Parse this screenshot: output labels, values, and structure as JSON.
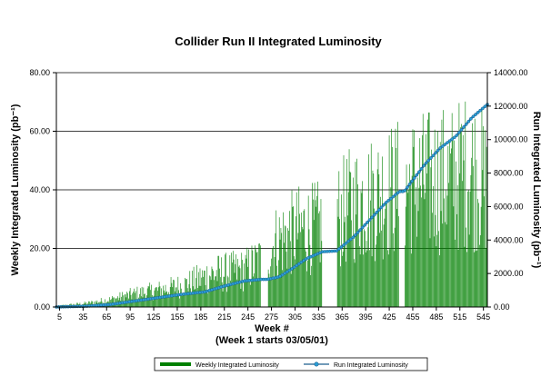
{
  "chart_data": {
    "type": "bar",
    "title": "Collider Run II Integrated Luminosity",
    "xlabel_line1": "Week #",
    "xlabel_line2": "(Week 1 starts 03/05/01)",
    "ylabel_left": "Weekly Integrated Luminosity (pb⁻¹)",
    "ylabel_right": "Run Integrated Luminosity (pb⁻¹)",
    "xlim": [
      1,
      550
    ],
    "ylim_left": [
      0,
      80
    ],
    "ylim_right": [
      0,
      14000
    ],
    "y_ticks_left": [
      "0.00",
      "20.00",
      "40.00",
      "60.00",
      "80.00"
    ],
    "y_ticks_right": [
      "0.00",
      "2000.00",
      "4000.00",
      "6000.00",
      "8000.00",
      "10000.00",
      "12000.00",
      "14000.00"
    ],
    "x_ticks": [
      "5",
      "35",
      "65",
      "95",
      "125",
      "155",
      "185",
      "215",
      "245",
      "275",
      "305",
      "335",
      "365",
      "395",
      "425",
      "455",
      "485",
      "515",
      "545"
    ],
    "grid": "horizontal",
    "legend_position": "bottom",
    "series": [
      {
        "name": "Weekly Integrated Luminosity",
        "type": "bar",
        "axis": "left",
        "color": "#008000",
        "envelope": [
          {
            "week": 1,
            "value": 0.5
          },
          {
            "week": 40,
            "value": 2
          },
          {
            "week": 70,
            "value": 4
          },
          {
            "week": 100,
            "value": 7
          },
          {
            "week": 130,
            "value": 9
          },
          {
            "week": 165,
            "value": 12
          },
          {
            "week": 200,
            "value": 18
          },
          {
            "week": 240,
            "value": 20
          },
          {
            "week": 260,
            "value": 25
          },
          {
            "week": 282,
            "value": 36
          },
          {
            "week": 310,
            "value": 42
          },
          {
            "week": 345,
            "value": 44
          },
          {
            "week": 375,
            "value": 55
          },
          {
            "week": 405,
            "value": 60
          },
          {
            "week": 435,
            "value": 65
          },
          {
            "week": 470,
            "value": 68
          },
          {
            "week": 505,
            "value": 70
          },
          {
            "week": 530,
            "value": 75
          },
          {
            "week": 550,
            "value": 65
          }
        ],
        "shutdowns": [
          [
            262,
            270
          ],
          [
            340,
            358
          ],
          [
            438,
            444
          ]
        ]
      },
      {
        "name": "Run Integrated Luminosity",
        "type": "line",
        "axis": "right",
        "color": "#1f5f8f",
        "points": [
          {
            "week": 1,
            "value": 0
          },
          {
            "week": 40,
            "value": 50
          },
          {
            "week": 70,
            "value": 150
          },
          {
            "week": 100,
            "value": 350
          },
          {
            "week": 130,
            "value": 550
          },
          {
            "week": 160,
            "value": 750
          },
          {
            "week": 190,
            "value": 900
          },
          {
            "week": 215,
            "value": 1250
          },
          {
            "week": 240,
            "value": 1550
          },
          {
            "week": 262,
            "value": 1650
          },
          {
            "week": 270,
            "value": 1650
          },
          {
            "week": 285,
            "value": 1800
          },
          {
            "week": 300,
            "value": 2250
          },
          {
            "week": 320,
            "value": 2900
          },
          {
            "week": 340,
            "value": 3300
          },
          {
            "week": 358,
            "value": 3350
          },
          {
            "week": 380,
            "value": 4200
          },
          {
            "week": 400,
            "value": 5200
          },
          {
            "week": 420,
            "value": 6200
          },
          {
            "week": 438,
            "value": 6900
          },
          {
            "week": 444,
            "value": 6900
          },
          {
            "week": 470,
            "value": 8500
          },
          {
            "week": 490,
            "value": 9500
          },
          {
            "week": 510,
            "value": 10200
          },
          {
            "week": 530,
            "value": 11300
          },
          {
            "week": 550,
            "value": 12100
          }
        ]
      }
    ]
  }
}
